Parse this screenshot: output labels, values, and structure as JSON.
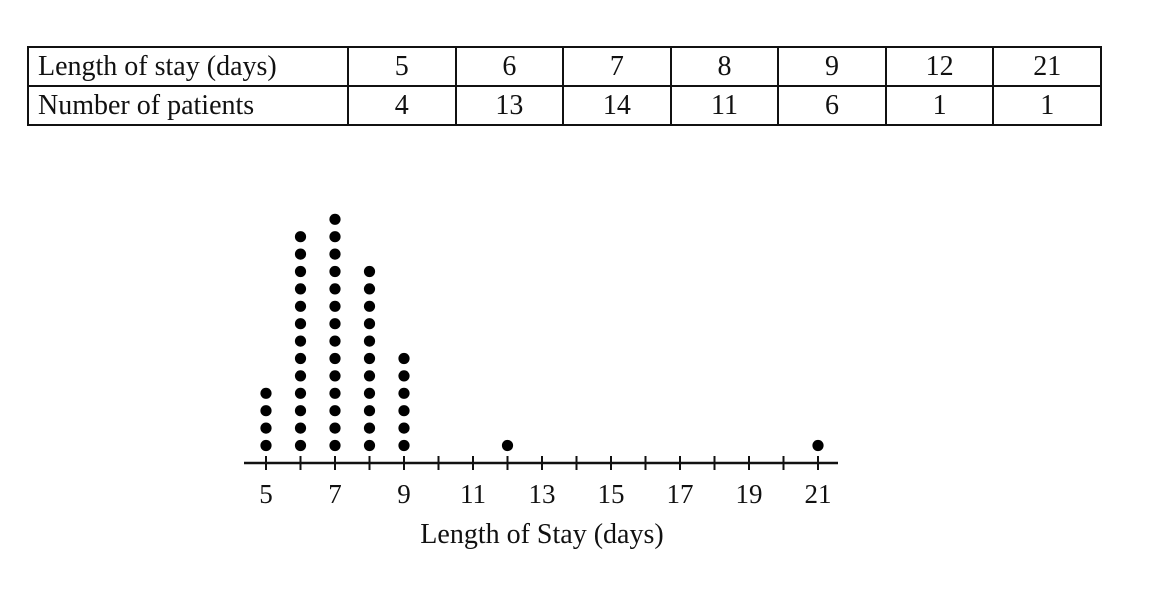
{
  "table": {
    "row_headers": [
      "Length of stay (days)",
      "Number of patients"
    ],
    "rows": [
      [
        "5",
        "6",
        "7",
        "8",
        "9",
        "12",
        "21"
      ],
      [
        "4",
        "13",
        "14",
        "11",
        "6",
        "1",
        "1"
      ]
    ]
  },
  "chart_data": {
    "type": "scatter",
    "subtype": "dot plot",
    "xlabel": "Length of Stay (days)",
    "xlim": [
      5,
      21
    ],
    "xticks": [
      5,
      6,
      7,
      8,
      9,
      10,
      11,
      12,
      13,
      14,
      15,
      16,
      17,
      18,
      19,
      20,
      21
    ],
    "xticklabels": [
      5,
      7,
      9,
      11,
      13,
      15,
      17,
      19,
      21
    ],
    "x": [
      5,
      6,
      7,
      8,
      9,
      12,
      21
    ],
    "counts": [
      4,
      13,
      14,
      11,
      6,
      1,
      1
    ],
    "dot_color": "#000000"
  }
}
